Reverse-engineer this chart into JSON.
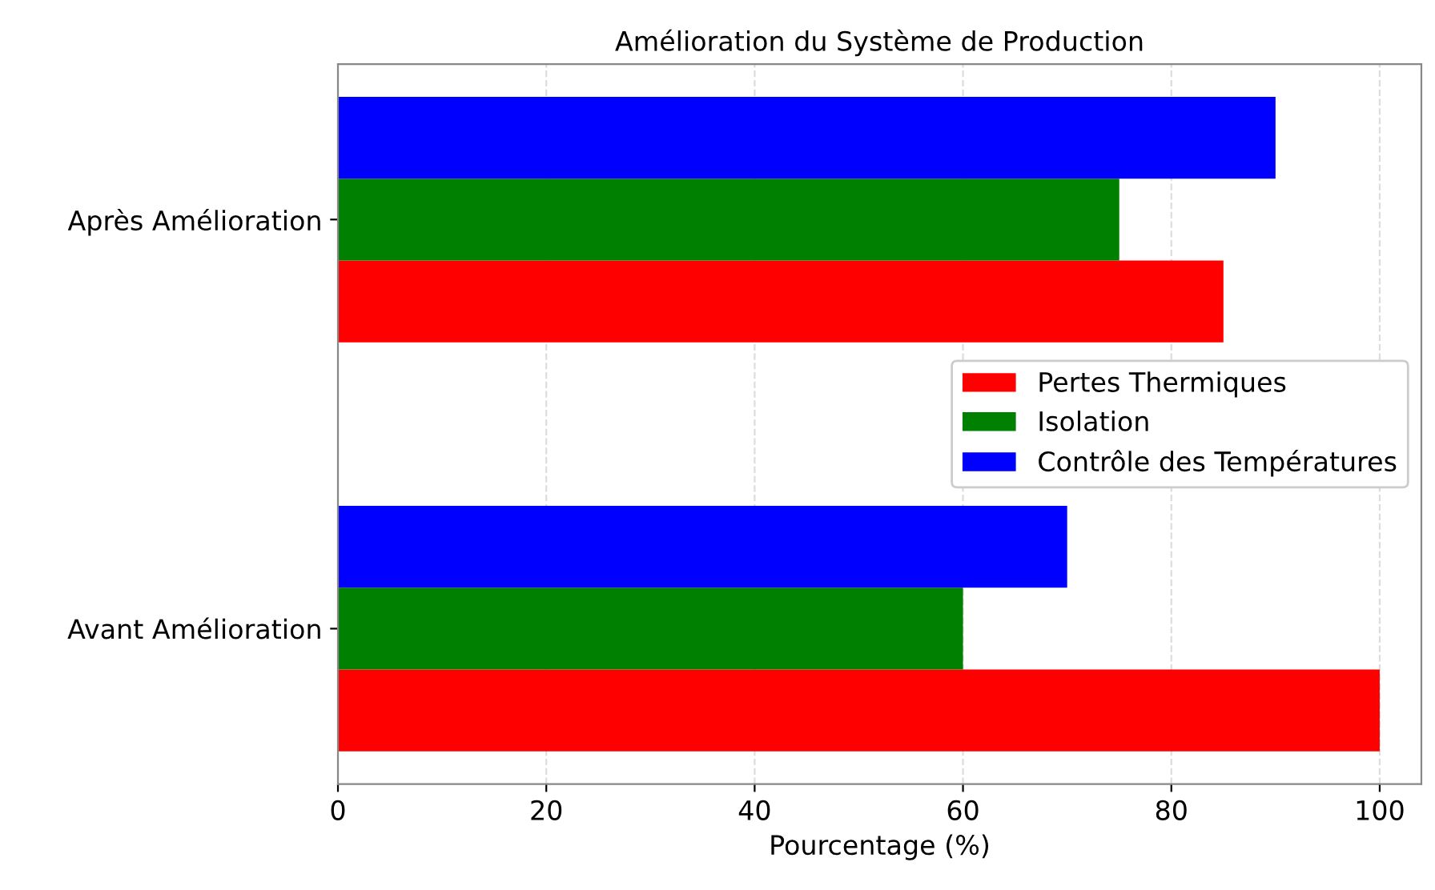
{
  "chart_data": {
    "type": "bar",
    "orientation": "horizontal",
    "title": "Amélioration du Système de Production",
    "xlabel": "Pourcentage (%)",
    "categories": [
      "Après Amélioration",
      "Avant Amélioration"
    ],
    "series": [
      {
        "name": "Pertes Thermiques",
        "color": "#ff0000",
        "values": [
          85,
          100
        ]
      },
      {
        "name": "Isolation",
        "color": "#008000",
        "values": [
          75,
          60
        ]
      },
      {
        "name": "Contrôle des Températures",
        "color": "#0000ff",
        "values": [
          90,
          70
        ]
      }
    ],
    "xlim": [
      0,
      104
    ],
    "xticks": [
      0,
      20,
      40,
      60,
      80,
      100
    ],
    "grid": "x",
    "legend": "center right"
  }
}
